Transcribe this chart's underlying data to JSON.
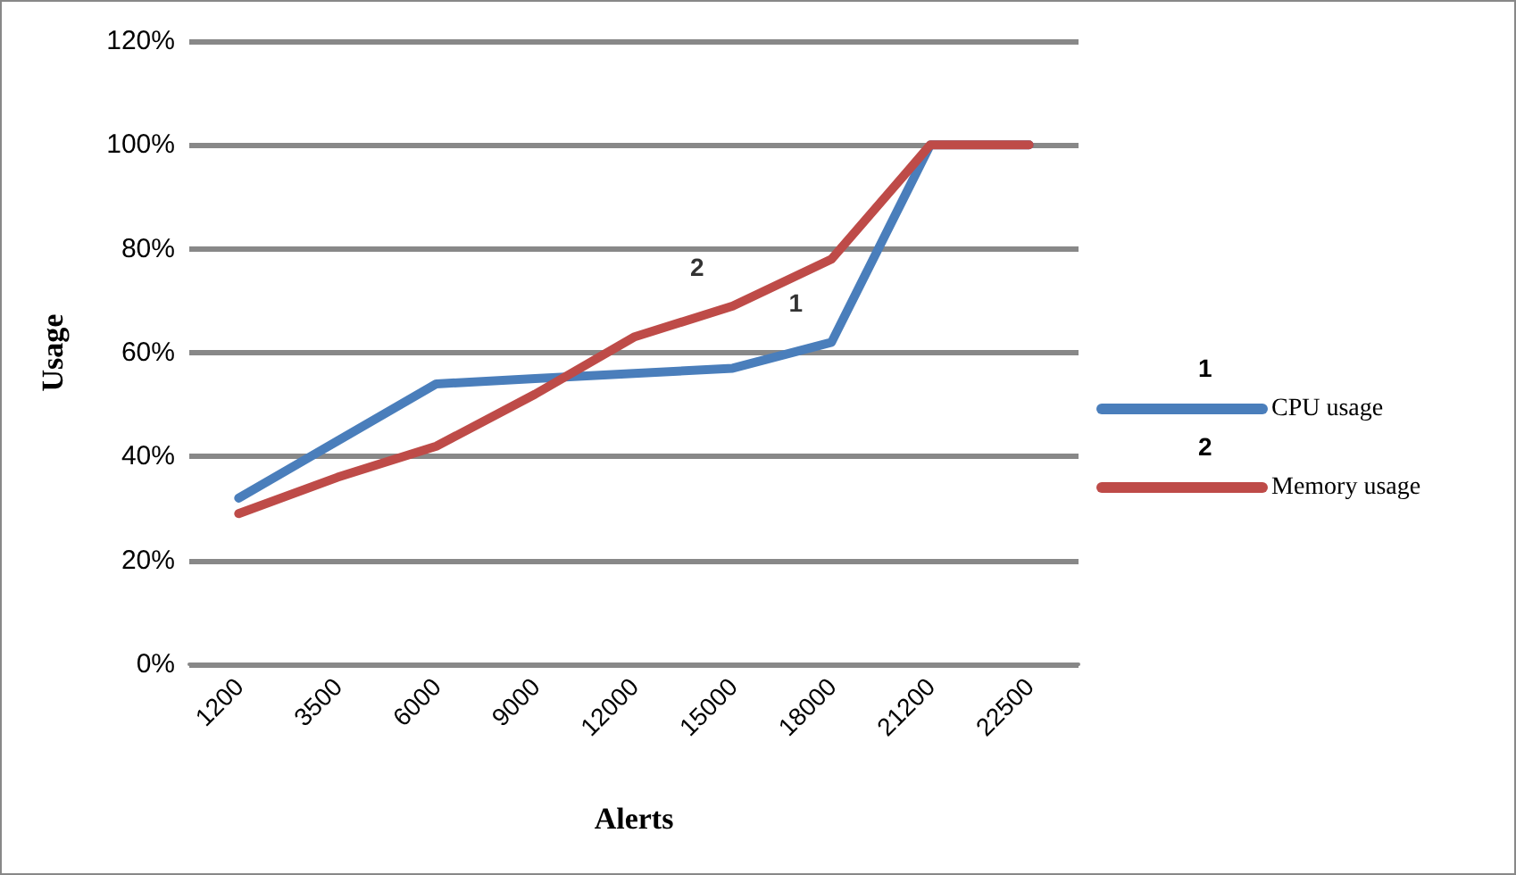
{
  "chart_data": {
    "type": "line",
    "xlabel": "Alerts",
    "ylabel": "Usage",
    "categories": [
      "1200",
      "3500",
      "6000",
      "9000",
      "12000",
      "15000",
      "18000",
      "21200",
      "22500"
    ],
    "series": [
      {
        "name": "CPU usage",
        "color": "#4a7ebb",
        "values": [
          32,
          43,
          54,
          55,
          56,
          57,
          62,
          100,
          100
        ]
      },
      {
        "name": "Memory usage",
        "color": "#be4b48",
        "values": [
          29,
          36,
          42,
          52,
          63,
          69,
          78,
          100,
          100
        ]
      }
    ],
    "ylim": [
      0,
      120
    ],
    "yticks": [
      {
        "value": 0,
        "label": "0%"
      },
      {
        "value": 20,
        "label": "20%"
      },
      {
        "value": 40,
        "label": "40%"
      },
      {
        "value": 60,
        "label": "60%"
      },
      {
        "value": 80,
        "label": "80%"
      },
      {
        "value": 100,
        "label": "100%"
      },
      {
        "value": 120,
        "label": "120%"
      }
    ],
    "annotations": [
      {
        "text": "1",
        "x": "18000",
        "y": 62
      },
      {
        "text": "2",
        "x": "15000",
        "y": 69
      }
    ],
    "grid": "y",
    "legend": "right",
    "marker": "none",
    "line_style": "solid"
  }
}
